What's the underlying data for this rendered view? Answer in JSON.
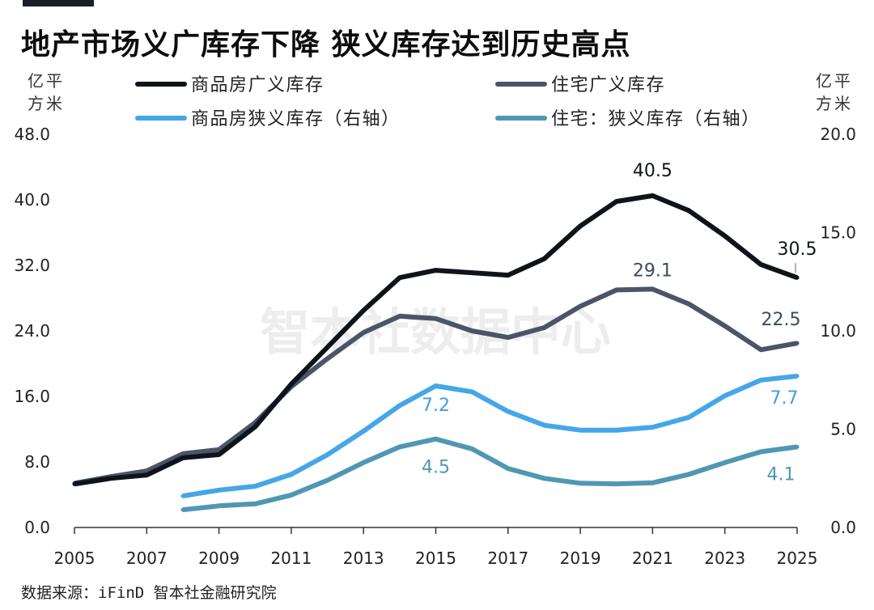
{
  "title": "地产市场义广库存下降 狭义库存达到历史高点",
  "source": "数据来源：iFinD 智本社金融研究院",
  "watermark": "智本社数据中心",
  "y_left_unit": [
    "亿平",
    "方米"
  ],
  "y_right_unit": [
    "亿平",
    "方米"
  ],
  "chart_data": {
    "type": "line",
    "x": [
      2005,
      2006,
      2007,
      2008,
      2009,
      2010,
      2011,
      2012,
      2013,
      2014,
      2015,
      2016,
      2017,
      2018,
      2019,
      2020,
      2021,
      2022,
      2023,
      2024,
      2025
    ],
    "x_ticks": [
      "2005",
      "2007",
      "2009",
      "2011",
      "2013",
      "2015",
      "2017",
      "2019",
      "2021",
      "2023",
      "2025"
    ],
    "y_left": {
      "ylim": [
        0,
        48
      ],
      "ticks": [
        "0.0",
        "8.0",
        "16.0",
        "24.0",
        "32.0",
        "40.0",
        "48.0"
      ]
    },
    "y_right": {
      "ylim": [
        0,
        20
      ],
      "ticks": [
        "0.0",
        "5.0",
        "10.0",
        "15.0",
        "20.0"
      ]
    },
    "legend_position": "top",
    "series": [
      {
        "name": "商品房广义库存",
        "axis": "left",
        "color": "#0f141b",
        "values": [
          5.3,
          6.0,
          6.4,
          8.5,
          8.9,
          12.3,
          17.5,
          22.0,
          26.5,
          30.5,
          31.4,
          31.1,
          30.8,
          32.8,
          36.8,
          39.8,
          40.5,
          38.7,
          35.6,
          32.1,
          30.5
        ]
      },
      {
        "name": "住宅广义库存",
        "axis": "left",
        "color": "#4b5568",
        "values": [
          5.4,
          6.2,
          6.9,
          9.0,
          9.5,
          12.8,
          17.2,
          20.6,
          23.8,
          25.8,
          25.5,
          24.0,
          23.2,
          24.4,
          27.0,
          29.0,
          29.1,
          27.3,
          24.6,
          21.7,
          22.5
        ]
      },
      {
        "name": "商品房狭义库存（右轴）",
        "axis": "right",
        "color": "#45a6e8",
        "values": [
          null,
          null,
          null,
          1.6,
          1.9,
          2.1,
          2.7,
          3.7,
          4.9,
          6.2,
          7.2,
          6.9,
          5.9,
          5.2,
          4.95,
          4.95,
          5.1,
          5.6,
          6.7,
          7.5,
          7.7
        ]
      },
      {
        "name": "住宅：狭义库存（右轴）",
        "axis": "right",
        "color": "#4f97b3",
        "values": [
          null,
          null,
          null,
          0.9,
          1.1,
          1.2,
          1.65,
          2.4,
          3.3,
          4.1,
          4.5,
          4.0,
          3.0,
          2.5,
          2.25,
          2.22,
          2.27,
          2.7,
          3.3,
          3.85,
          4.1
        ]
      }
    ],
    "annotations": [
      {
        "series": 0,
        "x": 2021,
        "text": "40.5",
        "color": "#0f141b"
      },
      {
        "series": 0,
        "x": 2025,
        "text": "30.5",
        "color": "#0f141b"
      },
      {
        "series": 1,
        "x": 2021,
        "text": "29.1",
        "color": "#3e4a5e"
      },
      {
        "series": 1,
        "x": 2025,
        "text": "22.5",
        "color": "#3e4a5e"
      },
      {
        "series": 2,
        "x": 2015,
        "text": "7.2",
        "color": "#3f9ee0"
      },
      {
        "series": 2,
        "x": 2025,
        "text": "7.7",
        "color": "#3f9ee0"
      },
      {
        "series": 3,
        "x": 2015,
        "text": "4.5",
        "color": "#4f97b3"
      },
      {
        "series": 3,
        "x": 2025,
        "text": "4.1",
        "color": "#4f97b3"
      }
    ]
  }
}
